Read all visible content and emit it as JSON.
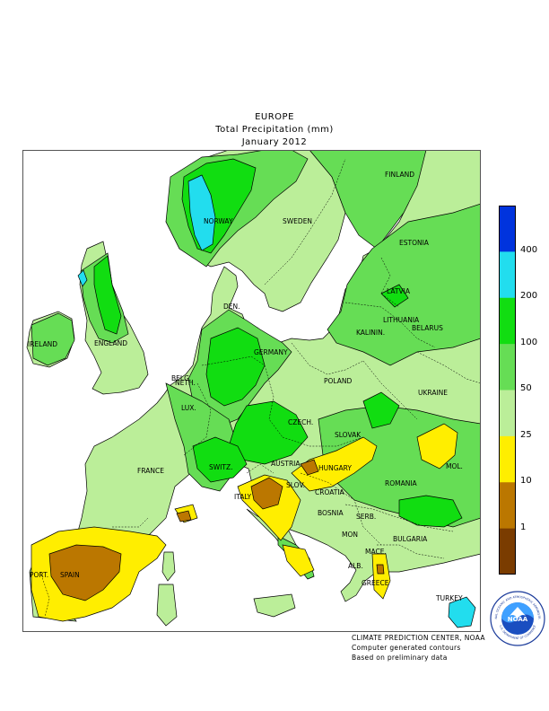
{
  "title": {
    "line1": "EUROPE",
    "line2": "Total Precipitation (mm)",
    "line3": "January 2012"
  },
  "legend": {
    "items": [
      {
        "label": "400",
        "color": "#0033dd"
      },
      {
        "label": "200",
        "color": "#22ddee"
      },
      {
        "label": "100",
        "color": "#11dd11"
      },
      {
        "label": "50",
        "color": "#66dd55"
      },
      {
        "label": "25",
        "color": "#bbee99"
      },
      {
        "label": "10",
        "color": "#ffee00"
      },
      {
        "label": "1",
        "color": "#bb7700"
      },
      {
        "label": "",
        "color": "#7a3c00"
      }
    ]
  },
  "countries": {
    "finland": "FINLAND",
    "norway": "NORWAY",
    "sweden": "SWEDEN",
    "estonia": "ESTONIA",
    "latvia": "LATVIA",
    "lithuania": "LITHUANIA",
    "kalinin": "KALININ.",
    "den": "DEN.",
    "ireland": "IRELAND",
    "england": "ENGLAND",
    "belarus": "BELARUS",
    "poland": "POLAND",
    "germany": "GERMANY",
    "neth": "NETH.",
    "belg": "BELG.",
    "lux": "LUX.",
    "czech": "CZECH.",
    "slovak": "SLOVAK",
    "ukraine": "UKRAINE",
    "austria": "AUSTRIA",
    "switz": "SWITZ.",
    "hungary": "HUNGARY",
    "france": "FRANCE",
    "mol": "MOL.",
    "romania": "ROMANIA",
    "slov": "SLOV.",
    "croatia": "CROATIA",
    "italy": "ITALY",
    "bosnia": "BOSNIA",
    "serb": "SERB.",
    "mon": "MON",
    "bulgaria": "BULGARIA",
    "mace": "MACE.",
    "alb": "ALB.",
    "port": "PORT.",
    "spain": "SPAIN",
    "greece": "GREECE",
    "turkey": "TURKEY"
  },
  "credits": {
    "line1": "CLIMATE PREDICTION CENTER, NOAA",
    "line2": "Computer generated contours",
    "line3": "Based on preliminary data"
  },
  "logo": {
    "text": "NOAA",
    "ring_top": "NATIONAL OCEANIC AND ATMOSPHERIC ADMINISTRATION",
    "ring_bottom": "U.S. DEPARTMENT OF COMMERCE"
  }
}
